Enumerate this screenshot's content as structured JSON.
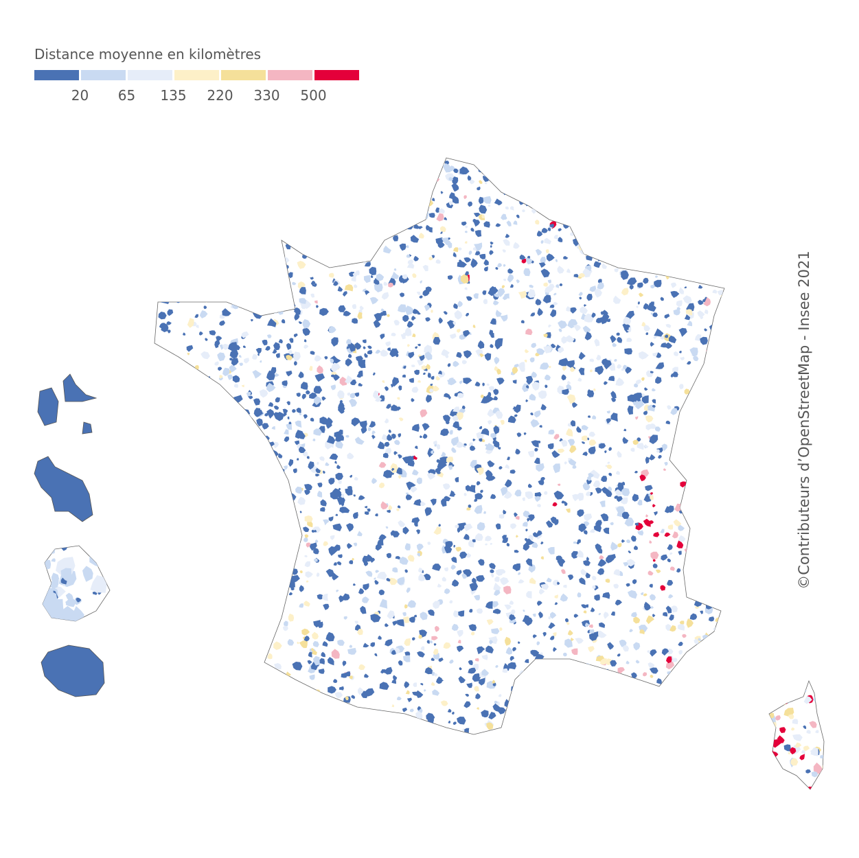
{
  "legend": {
    "title": "Distance moyenne en kilomètres",
    "colors": [
      "#4a72b4",
      "#c9daf2",
      "#e6edf9",
      "#fdf0c8",
      "#f5e09a",
      "#f4b6c2",
      "#e4003a"
    ],
    "labels": [
      "20",
      "65",
      "135",
      "220",
      "330",
      "500"
    ]
  },
  "credit": "©Contributeurs d’OpenStreetMap - Insee 2021"
}
